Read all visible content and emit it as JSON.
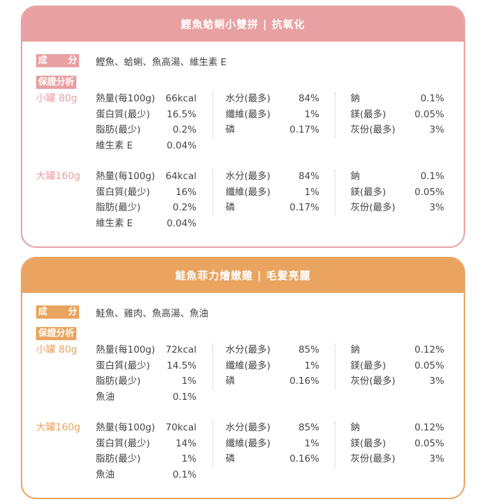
{
  "cards": [
    {
      "title": "鰹魚蛤蜊小雙拼 | 抗氧化",
      "color": "#e8a0a2",
      "ingredients_label": [
        "成",
        "分"
      ],
      "analysis_label": "保證分析",
      "ingredients": "鰹魚、蛤蜊、魚高湯、維生素 E",
      "groups": [
        {
          "size": "小罐 80g",
          "cols": [
            [
              [
                "熱量(每100g)",
                "66kcal"
              ],
              [
                "蛋白質(最少)",
                "16.5%"
              ],
              [
                "脂肪(最少)",
                "0.2%"
              ],
              [
                "維生素 E",
                "0.04%"
              ]
            ],
            [
              [
                "水分(最多)",
                "84%"
              ],
              [
                "纖維(最多)",
                "1%"
              ],
              [
                "磷",
                "0.17%"
              ]
            ],
            [
              [
                "鈉",
                "0.1%"
              ],
              [
                "鎂(最多)",
                "0.05%"
              ],
              [
                "灰份(最多)",
                "3%"
              ]
            ]
          ]
        },
        {
          "size": "大罐160g",
          "cols": [
            [
              [
                "熱量(每100g)",
                "64kcal"
              ],
              [
                "蛋白質(最少)",
                "16%"
              ],
              [
                "脂肪(最少)",
                "0.2%"
              ],
              [
                "維生素 E",
                "0.04%"
              ]
            ],
            [
              [
                "水分(最多)",
                "84%"
              ],
              [
                "纖維(最多)",
                "1%"
              ],
              [
                "磷",
                "0.17%"
              ]
            ],
            [
              [
                "鈉",
                "0.1%"
              ],
              [
                "鎂(最多)",
                "0.05%"
              ],
              [
                "灰份(最多)",
                "3%"
              ]
            ]
          ]
        }
      ]
    },
    {
      "title": "鮭魚菲力燴嫩雞 | 毛髮亮麗",
      "color": "#e9a45f",
      "ingredients_label": [
        "成",
        "分"
      ],
      "analysis_label": "保證分析",
      "ingredients": "鮭魚、雞肉、魚高湯、魚油",
      "groups": [
        {
          "size": "小罐 80g",
          "cols": [
            [
              [
                "熱量(每100g)",
                "72kcal"
              ],
              [
                "蛋白質(最少)",
                "14.5%"
              ],
              [
                "脂肪(最少)",
                "1%"
              ],
              [
                "魚油",
                "0.1%"
              ]
            ],
            [
              [
                "水分(最多)",
                "85%"
              ],
              [
                "纖維(最多)",
                "1%"
              ],
              [
                "磷",
                "0.16%"
              ]
            ],
            [
              [
                "鈉",
                "0.12%"
              ],
              [
                "鎂(最多)",
                "0.05%"
              ],
              [
                "灰份(最多)",
                "3%"
              ]
            ]
          ]
        },
        {
          "size": "大罐160g",
          "cols": [
            [
              [
                "熱量(每100g)",
                "70kcal"
              ],
              [
                "蛋白質(最少)",
                "14%"
              ],
              [
                "脂肪(最少)",
                "1%"
              ],
              [
                "魚油",
                "0.1%"
              ]
            ],
            [
              [
                "水分(最多)",
                "85%"
              ],
              [
                "纖維(最多)",
                "1%"
              ],
              [
                "磷",
                "0.16%"
              ]
            ],
            [
              [
                "鈉",
                "0.12%"
              ],
              [
                "鎂(最多)",
                "0.05%"
              ],
              [
                "灰份(最多)",
                "3%"
              ]
            ]
          ]
        }
      ]
    }
  ]
}
